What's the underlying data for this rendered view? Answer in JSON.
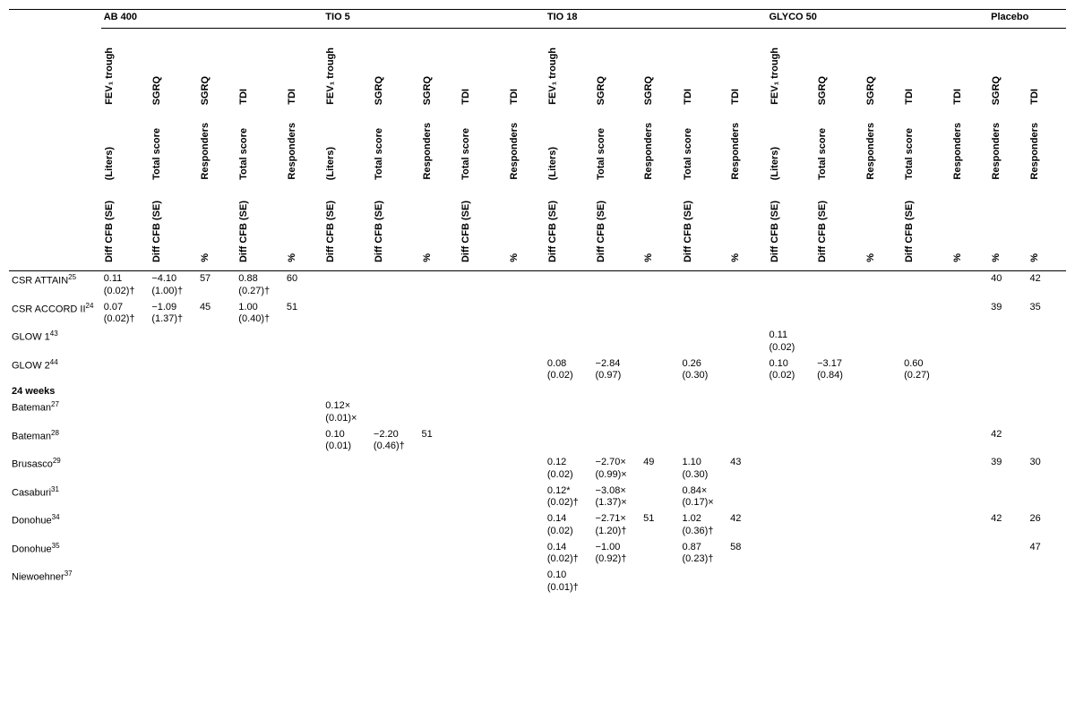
{
  "groups": {
    "ab400": "AB 400",
    "tio5": "TIO 5",
    "tio18": "TIO 18",
    "glyco50": "GLYCO 50",
    "placebo": "Placebo"
  },
  "headers": {
    "fev": "FEV₁ trough",
    "sgrq": "SGRQ",
    "tdi": "TDI",
    "liters": "(Liters)",
    "total": "Total score",
    "resp": "Responders",
    "diff": "Diff CFB (SE)",
    "pct": "%"
  },
  "section": {
    "weeks24": "24 weeks"
  },
  "studies": {
    "attain": {
      "label": "CSR ATTAIN",
      "ref": "25"
    },
    "accord": {
      "label": "CSR ACCORD II",
      "ref": "24"
    },
    "glow1": {
      "label": "GLOW 1",
      "ref": "43"
    },
    "glow2": {
      "label": "GLOW 2",
      "ref": "44"
    },
    "bateman27": {
      "label": "Bateman",
      "ref": "27"
    },
    "bateman28": {
      "label": "Bateman",
      "ref": "28"
    },
    "brusasco": {
      "label": "Brusasco",
      "ref": "29"
    },
    "casaburi": {
      "label": "Casaburi",
      "ref": "31"
    },
    "donohue34": {
      "label": "Donohue",
      "ref": "34"
    },
    "donohue35": {
      "label": "Donohue",
      "ref": "35"
    },
    "niewoehner": {
      "label": "Niewoehner",
      "ref": "37"
    }
  },
  "data": {
    "attain": {
      "ab400_fev_l1": "0.11",
      "ab400_fev_l2": "(0.02)†",
      "ab400_sgrq_t_l1": "−4.10",
      "ab400_sgrq_t_l2": "(1.00)†",
      "ab400_sgrq_r": "57",
      "ab400_tdi_t_l1": "0.88",
      "ab400_tdi_t_l2": "(0.27)†",
      "ab400_tdi_r": "60",
      "plac_sgrq_r": "40",
      "plac_tdi_r": "42"
    },
    "accord": {
      "ab400_fev_l1": "0.07",
      "ab400_fev_l2": "(0.02)†",
      "ab400_sgrq_t_l1": "−1.09",
      "ab400_sgrq_t_l2": "(1.37)†",
      "ab400_sgrq_r": "45",
      "ab400_tdi_t_l1": "1.00",
      "ab400_tdi_t_l2": "(0.40)†",
      "ab400_tdi_r": "51",
      "plac_sgrq_r": "39",
      "plac_tdi_r": "35"
    },
    "glow1": {
      "gly_fev_l1": "0.11",
      "gly_fev_l2": "(0.02)"
    },
    "glow2": {
      "tio18_fev_l1": "0.08",
      "tio18_fev_l2": "(0.02)",
      "tio18_sgrq_t_l1": "−2.84",
      "tio18_sgrq_t_l2": "(0.97)",
      "tio18_tdi_t_l1": "0.26",
      "tio18_tdi_t_l2": "(0.30)",
      "gly_fev_l1": "0.10",
      "gly_fev_l2": "(0.02)",
      "gly_sgrq_t_l1": "−3.17",
      "gly_sgrq_t_l2": "(0.84)",
      "gly_tdi_t_l1": "0.60",
      "gly_tdi_t_l2": "(0.27)"
    },
    "bateman27": {
      "tio5_fev_l1": "0.12×",
      "tio5_fev_l2": "(0.01)×"
    },
    "bateman28": {
      "tio5_fev_l1": "0.10",
      "tio5_fev_l2": "(0.01)",
      "tio5_sgrq_t_l1": "−2.20",
      "tio5_sgrq_t_l2": "(0.46)†",
      "tio5_sgrq_r": "51",
      "plac_sgrq_r": "42"
    },
    "brusasco": {
      "tio18_fev_l1": "0.12",
      "tio18_fev_l2": "(0.02)",
      "tio18_sgrq_t_l1": "−2.70×",
      "tio18_sgrq_t_l2": "(0.99)×",
      "tio18_sgrq_r": "49",
      "tio18_tdi_t_l1": "1.10",
      "tio18_tdi_t_l2": "(0.30)",
      "tio18_tdi_r": "43",
      "plac_sgrq_r": "39",
      "plac_tdi_r": "30"
    },
    "casaburi": {
      "tio18_fev_l1": "0.12*",
      "tio18_fev_l2": "(0.02)†",
      "tio18_sgrq_t_l1": "−3.08×",
      "tio18_sgrq_t_l2": "(1.37)×",
      "tio18_tdi_t_l1": "0.84×",
      "tio18_tdi_t_l2": "(0.17)×"
    },
    "donohue34": {
      "tio18_fev_l1": "0.14",
      "tio18_fev_l2": "(0.02)",
      "tio18_sgrq_t_l1": "−2.71×",
      "tio18_sgrq_t_l2": "(1.20)†",
      "tio18_sgrq_r": "51",
      "tio18_tdi_t_l1": "1.02",
      "tio18_tdi_t_l2": "(0.36)†",
      "tio18_tdi_r": "42",
      "plac_sgrq_r": "42",
      "plac_tdi_r": "26"
    },
    "donohue35": {
      "tio18_fev_l1": "0.14",
      "tio18_fev_l2": "(0.02)†",
      "tio18_sgrq_t_l1": "−1.00",
      "tio18_sgrq_t_l2": "(0.92)†",
      "tio18_tdi_t_l1": "0.87",
      "tio18_tdi_t_l2": "(0.23)†",
      "tio18_tdi_r": "58",
      "plac_tdi_r": "47"
    },
    "niewoehner": {
      "tio18_fev_l1": "0.10",
      "tio18_fev_l2": "(0.01)†"
    }
  }
}
